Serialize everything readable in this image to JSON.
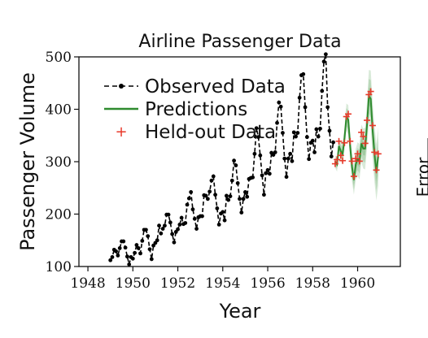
{
  "chart_data": {
    "type": "line",
    "title": "Airline Passenger Data",
    "xlabel": "Year",
    "ylabel": "Passenger Volume",
    "xlim": [
      1947.6,
      1961.9
    ],
    "ylim": [
      100,
      500
    ],
    "xticks": [
      1948,
      1950,
      1952,
      1954,
      1956,
      1958,
      1960
    ],
    "yticks": [
      100,
      200,
      300,
      400,
      500
    ],
    "xtick_labels": [
      "1948",
      "1950",
      "1952",
      "1954",
      "1956",
      "1958",
      "1960"
    ],
    "ytick_labels": [
      "100",
      "200",
      "300",
      "400",
      "500"
    ],
    "grid": false,
    "legend_position": "upper-left",
    "colors": {
      "observed": "#000000",
      "predictions": "#2e8b2e",
      "heldout": "#e8392a",
      "band": "#2e8b2e"
    },
    "series": [
      {
        "name": "Observed Data",
        "style": "dashed-line-with-dots",
        "x_start": 1949.0,
        "x_step": 0.08333,
        "values": [
          112,
          118,
          132,
          129,
          121,
          135,
          148,
          148,
          136,
          119,
          104,
          118,
          115,
          126,
          141,
          135,
          125,
          149,
          170,
          170,
          158,
          133,
          114,
          140,
          145,
          150,
          178,
          163,
          172,
          178,
          199,
          199,
          184,
          162,
          146,
          166,
          171,
          180,
          193,
          181,
          183,
          218,
          230,
          242,
          209,
          191,
          172,
          194,
          196,
          196,
          236,
          235,
          229,
          243,
          264,
          272,
          237,
          211,
          180,
          201,
          204,
          188,
          235,
          227,
          234,
          264,
          302,
          293,
          259,
          229,
          203,
          229,
          242,
          233,
          267,
          269,
          270,
          315,
          364,
          347,
          312,
          274,
          237,
          278,
          284,
          277,
          317,
          313,
          318,
          374,
          413,
          405,
          355,
          306,
          271,
          306,
          315,
          301,
          356,
          348,
          355,
          422,
          465,
          467,
          404,
          347,
          305,
          336,
          340,
          318,
          362,
          348,
          363,
          435,
          491,
          505,
          404,
          359,
          310,
          337
        ]
      },
      {
        "name": "Predictions",
        "style": "line-with-band",
        "x_start": 1959.0,
        "x_step": 0.08333,
        "values": [
          300,
          295,
          330,
          320,
          315,
          345,
          385,
          380,
          330,
          290,
          265,
          295,
          305,
          300,
          335,
          325,
          325,
          370,
          425,
          420,
          360,
          315,
          280,
          310
        ],
        "band_halfwidth": [
          12,
          14,
          16,
          18,
          20,
          22,
          26,
          28,
          28,
          28,
          28,
          30,
          32,
          34,
          36,
          38,
          40,
          44,
          50,
          54,
          54,
          54,
          54,
          56
        ]
      },
      {
        "name": "Held-out Data",
        "style": "markers-plus",
        "x_start": 1959.0,
        "x_step": 0.08333,
        "values": [
          296,
          304,
          339,
          312,
          302,
          336,
          386,
          391,
          339,
          301,
          272,
          306,
          315,
          301,
          356,
          348,
          335,
          379,
          428,
          434,
          369,
          318,
          284,
          315
        ]
      }
    ]
  },
  "clipped_right_panel_label": "Error"
}
